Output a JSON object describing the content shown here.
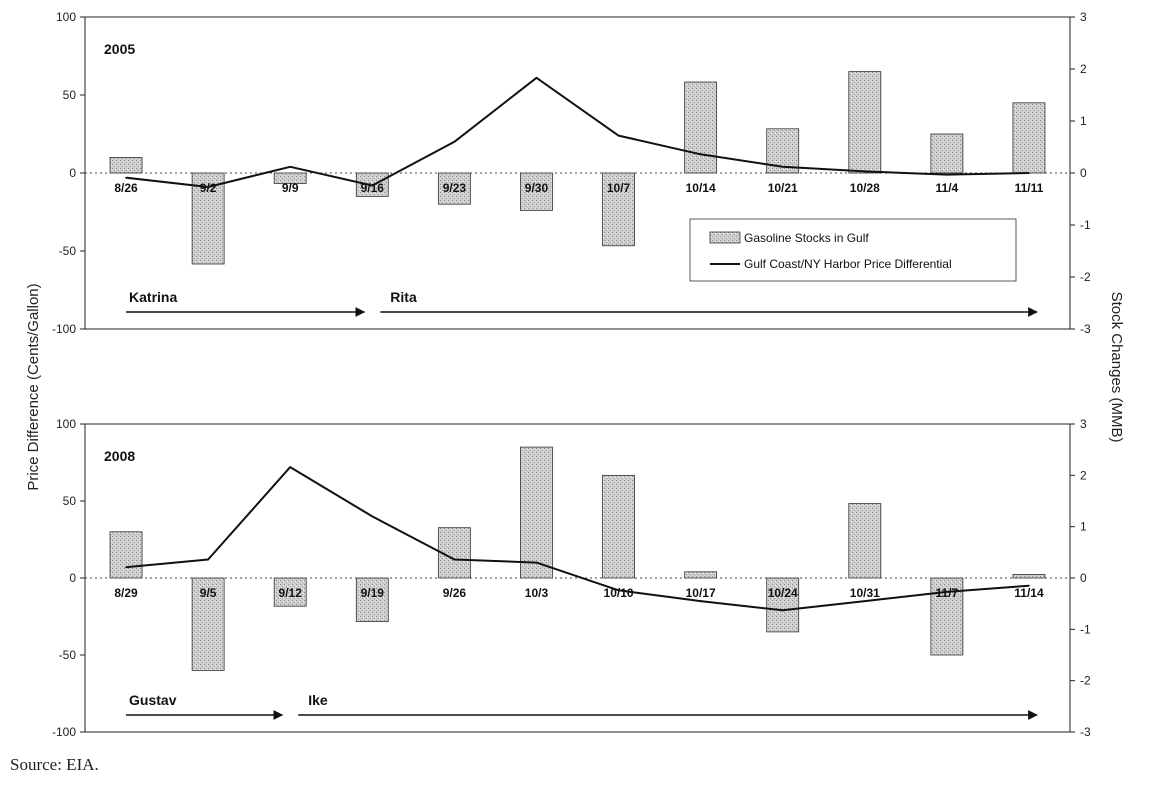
{
  "left_axis_label": "Price Difference (Cents/Gallon)",
  "right_axis_label": "Stock Changes (MMB)",
  "source": "Source: EIA.",
  "colors": {
    "bar_fill": "#c4c4c4",
    "bar_stroke": "#333333",
    "line": "#111111",
    "axis": "#222222"
  },
  "chart_data": [
    {
      "type": "bar",
      "title": "2005",
      "categories": [
        "8/26",
        "9/2",
        "9/9",
        "9/16",
        "9/23",
        "9/30",
        "10/7",
        "10/14",
        "10/21",
        "10/28",
        "11/4",
        "11/11"
      ],
      "y_left_ticks": [
        100,
        50,
        0,
        -50,
        -100
      ],
      "y_right_ticks": [
        3,
        2,
        1,
        0,
        -1,
        -2,
        -3
      ],
      "ylim_left": [
        -100,
        100
      ],
      "ylim_right": [
        -3,
        3
      ],
      "series": [
        {
          "name": "Gasoline Stocks in Gulf",
          "type": "bar",
          "axis": "right",
          "values": [
            0.3,
            -1.75,
            -0.2,
            -0.45,
            -0.6,
            -0.72,
            -1.4,
            1.75,
            0.85,
            1.95,
            0.75,
            1.35
          ]
        },
        {
          "name": "Gulf Coast/NY Harbor Price Differential",
          "type": "line",
          "axis": "left",
          "values": [
            -3,
            -9,
            4,
            -8,
            20,
            61,
            24,
            12,
            4,
            1,
            -1,
            0
          ]
        }
      ],
      "legend": [
        "Gasoline Stocks in Gulf",
        "Gulf Coast/NY Harbor Price Differential"
      ],
      "legend_position": "right",
      "annotations": [
        {
          "label": "Katrina",
          "from": "8/26",
          "to": "9/16"
        },
        {
          "label": "Rita",
          "from": "9/16",
          "to": "11/11"
        }
      ]
    },
    {
      "type": "bar",
      "title": "2008",
      "categories": [
        "8/29",
        "9/5",
        "9/12",
        "9/19",
        "9/26",
        "10/3",
        "10/10",
        "10/17",
        "10/24",
        "10/31",
        "11/7",
        "11/14"
      ],
      "y_left_ticks": [
        100,
        50,
        0,
        -50,
        -100
      ],
      "y_right_ticks": [
        3,
        2,
        1,
        0,
        -1,
        -2,
        -3
      ],
      "ylim_left": [
        -100,
        100
      ],
      "ylim_right": [
        -3,
        3
      ],
      "series": [
        {
          "name": "Gasoline Stocks in Gulf",
          "type": "bar",
          "axis": "right",
          "values": [
            0.9,
            -1.8,
            -0.55,
            -0.85,
            0.98,
            2.55,
            2.0,
            0.12,
            -1.05,
            1.45,
            -1.5,
            0.07
          ]
        },
        {
          "name": "Gulf Coast/NY Harbor Price Differential",
          "type": "line",
          "axis": "left",
          "values": [
            7,
            12,
            72,
            40,
            12,
            10,
            -8,
            -15,
            -21,
            -15,
            -9,
            -5
          ]
        }
      ],
      "annotations": [
        {
          "label": "Gustav",
          "from": "8/29",
          "to": "9/12"
        },
        {
          "label": "Ike",
          "from": "9/12",
          "to": "11/14"
        }
      ]
    }
  ]
}
